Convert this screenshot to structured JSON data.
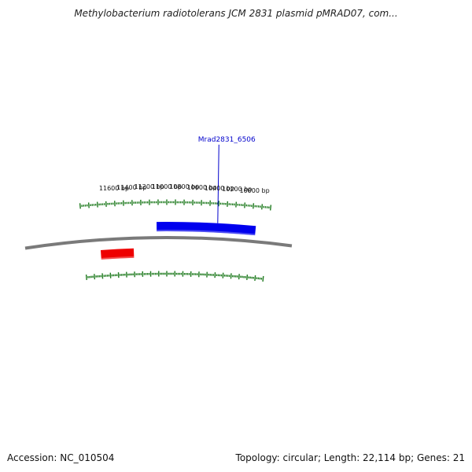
{
  "header": {
    "title": "Methylobacterium radiotolerans JCM 2831 plasmid pMRAD07, com..."
  },
  "footer": {
    "accession": "Accession: NC_010504",
    "summary": "Topology: circular; Length: 22,114 bp; Genes: 21"
  },
  "colors": {
    "backbone": "#7a7a7a",
    "ticks": "#1e7a1e",
    "forward_gene": "#0000ee",
    "reverse_gene": "#ee0000",
    "gene_label": "#0000cc"
  },
  "scale_labels": [
    {
      "text": "11600 bp",
      "position": 11600
    },
    {
      "text": "11400 bp",
      "position": 11400
    },
    {
      "text": "11200 bp",
      "position": 11200
    },
    {
      "text": "11000 bp",
      "position": 11000
    },
    {
      "text": "10800 bp",
      "position": 10800
    },
    {
      "text": "10600 bp",
      "position": 10600
    },
    {
      "text": "10400 bp",
      "position": 10400
    },
    {
      "text": "10200 bp",
      "position": 10200
    },
    {
      "text": "10000 bp",
      "position": 10000
    }
  ],
  "genes": [
    {
      "name": "Mrad2831_6506",
      "strand": "forward",
      "start": 9950,
      "end": 11120,
      "label_at": 10400
    },
    {
      "name": "",
      "strand": "reverse",
      "start": 11400,
      "end": 11800
    }
  ]
}
